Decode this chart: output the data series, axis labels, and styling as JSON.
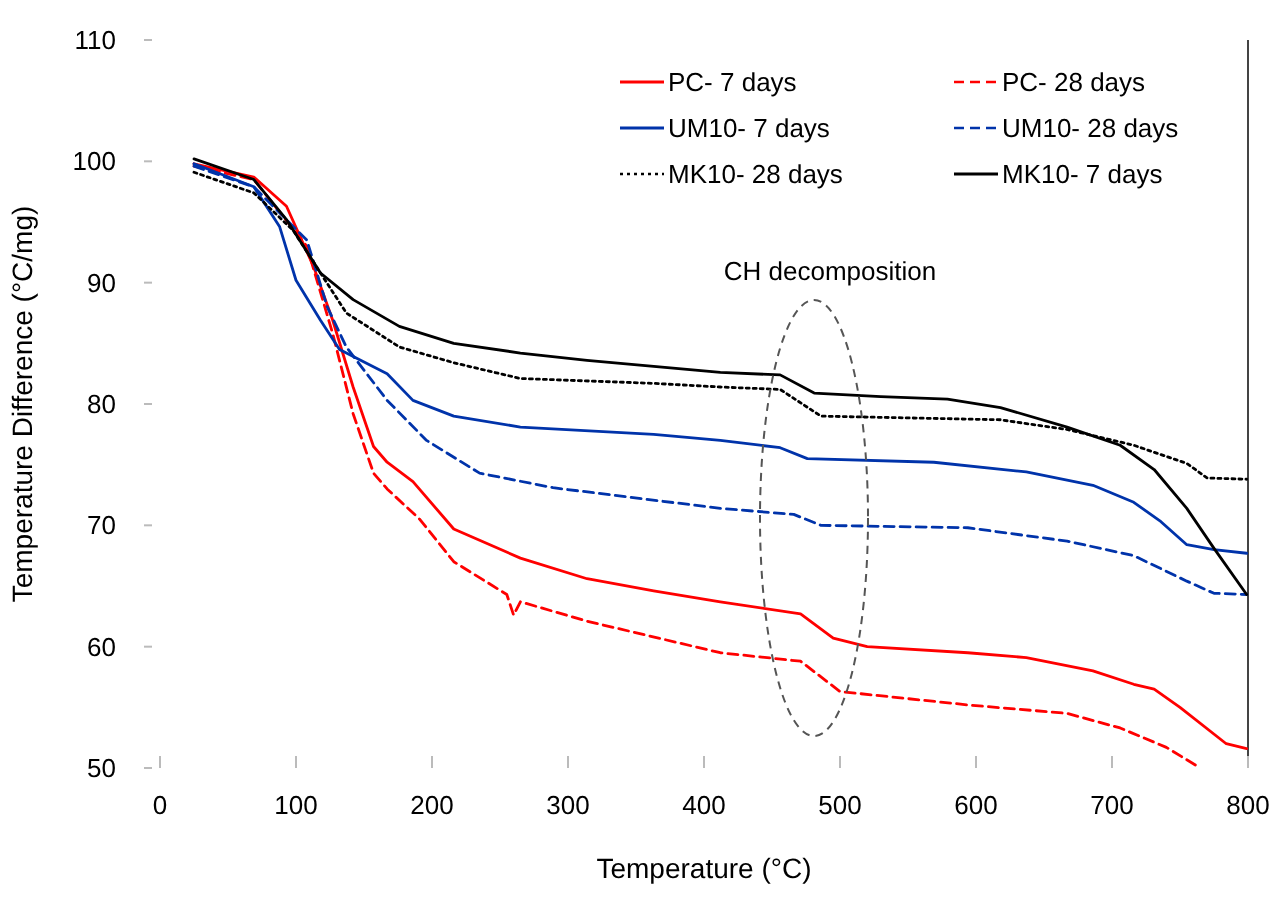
{
  "chart_data": {
    "type": "line",
    "xlabel": "Temperature (°C)",
    "ylabel": "Temperature Difference (°C/mg)",
    "xlim": [
      0,
      800
    ],
    "ylim": [
      50,
      110
    ],
    "xticks": [
      0,
      100,
      200,
      300,
      400,
      500,
      600,
      700,
      800
    ],
    "yticks": [
      50,
      60,
      70,
      80,
      90,
      100,
      110
    ],
    "grid": false,
    "legend": "top right",
    "marker": "none",
    "annotations": [
      "CH decomposition"
    ],
    "series": [
      {
        "name": "PC- 7 days",
        "color": "#ff0000",
        "line_style": "solid",
        "x": [
          25,
          69,
          93,
          113,
          127,
          142,
          157,
          167,
          186,
          216,
          265,
          314,
          363,
          412,
          471,
          495,
          520,
          594,
          637,
          686,
          716,
          731,
          750,
          784,
          799
        ],
        "values": [
          99.8,
          98.7,
          96.3,
          91.3,
          86.9,
          81.4,
          76.5,
          75.2,
          73.6,
          69.7,
          67.3,
          65.6,
          64.6,
          63.7,
          62.7,
          60.7,
          60,
          59.5,
          59.1,
          58,
          56.9,
          56.5,
          55,
          52,
          51.6
        ]
      },
      {
        "name": "PC- 28 days",
        "color": "#ff0000",
        "line_style": "dashed",
        "x": [
          25,
          69,
          108,
          127,
          142,
          157,
          167,
          191,
          216,
          255,
          260,
          265,
          314,
          412,
          471,
          500,
          594,
          667,
          706,
          740,
          762
        ],
        "values": [
          99.6,
          98.5,
          93,
          85.8,
          79.2,
          74.3,
          73,
          70.5,
          67,
          64.3,
          62.6,
          63.7,
          62.1,
          59.5,
          58.8,
          56.3,
          55.2,
          54.5,
          53.3,
          51.7,
          50.2
        ]
      },
      {
        "name": "UM10- 7 days",
        "color": "#0033aa",
        "line_style": "solid",
        "x": [
          25,
          69,
          88,
          100,
          118,
          132,
          167,
          186,
          216,
          265,
          363,
          412,
          456,
          476,
          569,
          637,
          686,
          716,
          736,
          755,
          775,
          799
        ],
        "values": [
          99.8,
          97.9,
          94.6,
          90.2,
          86.9,
          84.5,
          82.5,
          80.3,
          79,
          78.1,
          77.5,
          77,
          76.4,
          75.5,
          75.2,
          74.4,
          73.3,
          71.9,
          70.3,
          68.4,
          68,
          67.7
        ]
      },
      {
        "name": "UM10- 28 days",
        "color": "#0033aa",
        "line_style": "dashed",
        "x": [
          25,
          69,
          108,
          123,
          137,
          167,
          196,
          235,
          289,
          412,
          466,
          486,
          594,
          667,
          716,
          755,
          775,
          799
        ],
        "values": [
          99.6,
          97.9,
          93.5,
          88,
          84.7,
          80.3,
          77,
          74.3,
          73.1,
          71.4,
          70.9,
          70,
          69.8,
          68.7,
          67.5,
          65.4,
          64.4,
          64.3
        ]
      },
      {
        "name": "MK10- 28 days",
        "color": "#000000",
        "line_style": "dotted",
        "x": [
          25,
          69,
          98,
          118,
          137,
          176,
          216,
          265,
          363,
          412,
          456,
          486,
          618,
          667,
          716,
          755,
          770,
          799
        ],
        "values": [
          99.1,
          97.4,
          94.3,
          90.8,
          87.5,
          84.7,
          83.4,
          82.1,
          81.7,
          81.4,
          81.2,
          79,
          78.7,
          77.9,
          76.6,
          75.1,
          73.9,
          73.8
        ]
      },
      {
        "name": "MK10- 7 days",
        "color": "#000000",
        "line_style": "solid",
        "x": [
          25,
          69,
          93,
          118,
          142,
          176,
          216,
          265,
          314,
          412,
          456,
          481,
          530,
          579,
          618,
          667,
          706,
          731,
          755,
          775,
          799
        ],
        "values": [
          100.2,
          98.5,
          95.2,
          90.8,
          88.6,
          86.4,
          85,
          84.2,
          83.6,
          82.6,
          82.4,
          80.9,
          80.6,
          80.4,
          79.7,
          78.1,
          76.6,
          74.6,
          71.4,
          68.1,
          64.3
        ]
      }
    ]
  }
}
